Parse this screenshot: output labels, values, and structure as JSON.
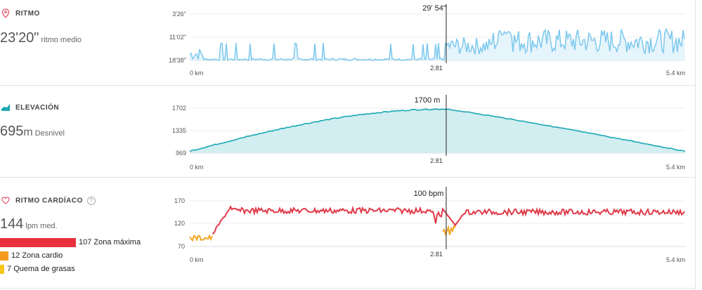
{
  "pace": {
    "title": "RITMO",
    "value": "23'20\"",
    "unit": "ritmo medio",
    "y_ticks": [
      "3'26\"",
      "11'02\"",
      "18'38\""
    ],
    "marker_label": "29' 54\"",
    "x_start": "0 km",
    "x_mid": "2.81",
    "x_end": "5.4 km",
    "color": "#7cc8ee"
  },
  "elevation": {
    "title": "ELEVACIÓN",
    "value": "695",
    "unit_small": "m",
    "unit": "Desnivel",
    "y_ticks": [
      "1702",
      "1335",
      "969"
    ],
    "marker_label": "1700 m",
    "x_start": "0 km",
    "x_mid": "2.81",
    "x_end": "5.4 km",
    "color": "#1aa8b3",
    "fill": "#d2eef0"
  },
  "heart": {
    "title": "RITMO CARDÍACO",
    "help": "?",
    "value": "144",
    "unit": "lpm med.",
    "y_ticks": [
      "170",
      "120",
      "70"
    ],
    "marker_label": "100 bpm",
    "x_start": "0 km",
    "x_mid": "2.81",
    "x_end": "5.4 km",
    "color": "#e03a48",
    "low_color": "#f5a623",
    "zones": [
      {
        "minutes": "107",
        "label": "Zona máxima",
        "color": "#e8313d"
      },
      {
        "minutes": "12",
        "label": "Zona cardio",
        "color": "#f39c1f"
      },
      {
        "minutes": "7",
        "label": "Quema de grasas",
        "color": "#f5c518"
      }
    ]
  }
}
